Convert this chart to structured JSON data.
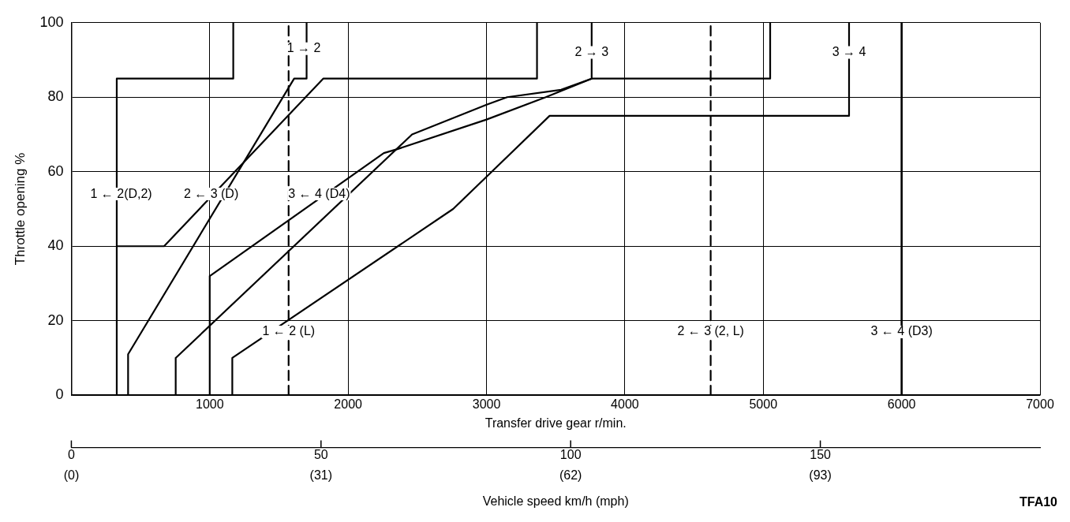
{
  "chart_data": {
    "type": "line",
    "xlabel": "Transfer drive gear r/min.",
    "ylabel": "Throttle opening %",
    "x2label": "Vehicle speed km/h (mph)",
    "xlim": [
      0,
      7000
    ],
    "xticks": [
      1000,
      2000,
      3000,
      4000,
      5000,
      6000,
      7000
    ],
    "ylim": [
      0,
      100
    ],
    "yticks": [
      0,
      20,
      40,
      60,
      80,
      100
    ],
    "x2lim": [
      0,
      194
    ],
    "x2ticks": [
      0,
      50,
      100,
      150
    ],
    "ref_lines": [
      {
        "axis": "x",
        "value": 6000,
        "color": "#000000",
        "line_style": "solid"
      }
    ],
    "grid": true,
    "legend": false,
    "marker": "none",
    "line_style": "solid",
    "series": [
      {
        "color": "#000000",
        "x": [
          1700,
          1700,
          1610,
          410,
          410
        ],
        "values": [
          100,
          85,
          85,
          11,
          0
        ]
      },
      {
        "color": "#000000",
        "x": [
          1170,
          1170,
          328,
          328
        ],
        "values": [
          100,
          85,
          85,
          0
        ]
      },
      {
        "color": "#000000",
        "x": [
          3365,
          3365,
          1820,
          670,
          328
        ],
        "values": [
          100,
          85,
          85,
          40,
          40
        ]
      },
      {
        "color": "#000000",
        "x": [
          1570,
          1570
        ],
        "values": [
          0,
          100
        ],
        "line_style": "dashed"
      },
      {
        "color": "#000000",
        "x": [
          3760,
          3760,
          3539,
          3149,
          3001,
          2462,
          754,
          754
        ],
        "values": [
          100,
          85,
          82,
          80,
          78,
          70,
          10,
          0
        ]
      },
      {
        "color": "#000000",
        "x": [
          5050,
          5050,
          3760,
          3428,
          3000,
          2351,
          2258,
          1000,
          1000
        ],
        "values": [
          100,
          85,
          85,
          80,
          74,
          66,
          65,
          32,
          0
        ]
      },
      {
        "color": "#000000",
        "x": [
          5620,
          5620,
          3456,
          3010,
          2759,
          1163,
          1163
        ],
        "values": [
          100,
          75,
          75,
          59,
          50,
          10,
          0
        ]
      },
      {
        "color": "#000000",
        "x": [
          4620,
          4620
        ],
        "values": [
          0,
          100
        ],
        "line_style": "dashed"
      }
    ],
    "annotations": [
      {
        "text": "1 → 2",
        "x": 1680,
        "y": 93
      },
      {
        "text": "2 → 3",
        "x": 3760,
        "y": 92
      },
      {
        "text": "3 → 4",
        "x": 5620,
        "y": 92
      },
      {
        "text": "1 ← 2(D,2)",
        "x": 360,
        "y": 54
      },
      {
        "text": "2 ← 3 (D)",
        "x": 1010,
        "y": 54
      },
      {
        "text": "3 ← 4 (D4)",
        "x": 1790,
        "y": 54
      },
      {
        "text": "1 ← 2 (L)",
        "x": 1570,
        "y": 17
      },
      {
        "text": "2 ← 3 (2, L)",
        "x": 4620,
        "y": 17
      },
      {
        "text": "3 ← 4 (D3)",
        "x": 6000,
        "y": 17
      },
      "(0)",
      "(31)",
      "(62)",
      "(93)",
      "TFA10"
    ]
  }
}
